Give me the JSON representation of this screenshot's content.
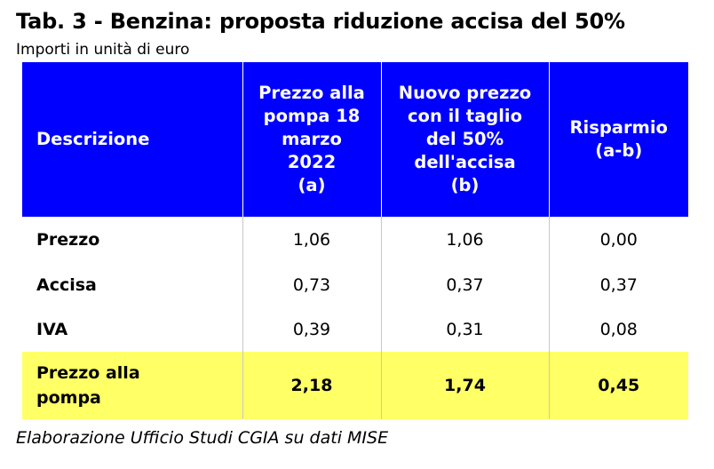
{
  "title": "Tab. 3  - Benzina: proposta riduzione accisa del 50%",
  "subtitle": "Importi in unità di euro",
  "source": "Elaborazione Ufficio Studi CGIA su dati MISE",
  "table": {
    "headers": [
      {
        "lines": [
          "Descrizione"
        ]
      },
      {
        "lines": [
          "Prezzo alla",
          "pompa 18",
          "marzo",
          "2022",
          "(a)"
        ]
      },
      {
        "lines": [
          "Nuovo prezzo",
          "con il  taglio",
          "del 50%",
          "dell'accisa",
          "(b)"
        ]
      },
      {
        "lines": [
          "Risparmio",
          "(a-b)"
        ]
      }
    ],
    "rows": [
      {
        "label": "Prezzo",
        "a": "1,06",
        "b": "1,06",
        "saving": "0,00"
      },
      {
        "label": "Accisa",
        "a": "0,73",
        "b": "0,37",
        "saving": "0,37"
      },
      {
        "label": "IVA",
        "a": "0,39",
        "b": "0,31",
        "saving": "0,08"
      }
    ],
    "total": {
      "label_lines": [
        "Prezzo alla",
        "pompa"
      ],
      "a": "2,18",
      "b": "1,74",
      "saving": "0,45"
    }
  },
  "colors": {
    "header_bg": "#0000ff",
    "header_text": "#ffffff",
    "total_bg": "#ffff66"
  }
}
